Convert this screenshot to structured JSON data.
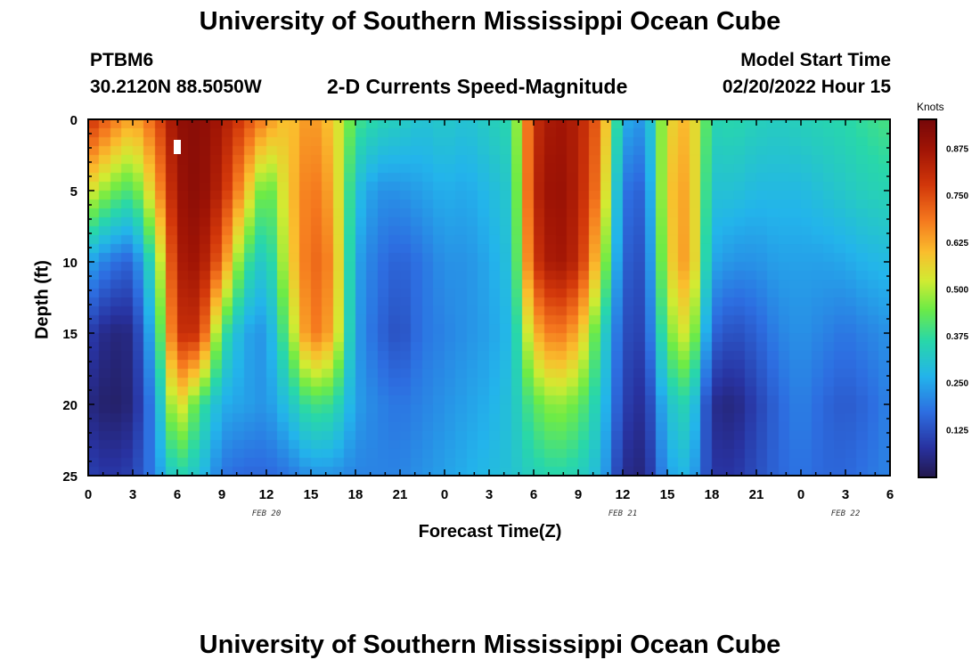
{
  "header": {
    "title_top": "University of Southern Mississippi Ocean Cube",
    "title_bottom": "University of Southern Mississippi Ocean Cube",
    "station_id": "PTBM6",
    "station_coords": "30.2120N  88.5050W",
    "plot_title": "2-D Currents Speed-Magnitude",
    "model_start_label": "Model Start Time",
    "model_start_value": "02/20/2022 Hour 15"
  },
  "chart_data": {
    "type": "heatmap",
    "title": "2-D Currents Speed-Magnitude",
    "xlabel": "Forecast Time(Z)",
    "ylabel": "Depth (ft)",
    "x_range_hours": [
      0,
      54
    ],
    "ylim": [
      0,
      25
    ],
    "x_tick_hours": [
      0,
      3,
      6,
      9,
      12,
      15,
      18,
      21,
      24,
      27,
      30,
      33,
      36,
      39,
      42,
      45,
      48,
      51,
      54
    ],
    "x_tick_labels": [
      "0",
      "3",
      "6",
      "9",
      "12",
      "15",
      "18",
      "21",
      "0",
      "3",
      "6",
      "9",
      "12",
      "15",
      "18",
      "21",
      "0",
      "3",
      "6"
    ],
    "y_ticks": [
      0,
      5,
      10,
      15,
      20,
      25
    ],
    "y_tick_labels": [
      "0",
      "5",
      "10",
      "15",
      "20",
      "25"
    ],
    "date_labels": [
      {
        "text": "FEB 20",
        "hour": 12
      },
      {
        "text": "FEB 21",
        "hour": 36
      },
      {
        "text": "FEB 22",
        "hour": 51
      }
    ],
    "colorbar": {
      "title": "Knots",
      "min": 0.0,
      "max": 0.95,
      "ticks": [
        0.125,
        0.25,
        0.375,
        0.5,
        0.625,
        0.75,
        0.875
      ],
      "tick_labels": [
        "0.125",
        "0.250",
        "0.375",
        "0.500",
        "0.625",
        "0.750",
        "0.875"
      ]
    },
    "time_hours": [
      0,
      1.5,
      3,
      4.5,
      6,
      7.5,
      9,
      10.5,
      12,
      13.5,
      15,
      16.5,
      18,
      19.5,
      21,
      22.5,
      24,
      25.5,
      27,
      28.5,
      30,
      31.5,
      33,
      34.5,
      36,
      37.5,
      39,
      40.5,
      42,
      43.5,
      45,
      46.5,
      48,
      49.5,
      51,
      52.5,
      54
    ],
    "depths_ft": [
      0,
      5,
      10,
      15,
      20,
      25
    ],
    "speed_knots": [
      [
        0.8,
        0.7,
        0.62,
        0.72,
        0.9,
        0.92,
        0.86,
        0.76,
        0.66,
        0.58,
        0.66,
        0.58,
        0.4,
        0.35,
        0.33,
        0.3,
        0.32,
        0.3,
        0.33,
        0.36,
        0.8,
        0.88,
        0.84,
        0.7,
        0.26,
        0.22,
        0.55,
        0.62,
        0.35,
        0.36,
        0.34,
        0.33,
        0.34,
        0.35,
        0.36,
        0.38,
        0.4
      ],
      [
        0.55,
        0.45,
        0.4,
        0.6,
        0.88,
        0.92,
        0.82,
        0.62,
        0.4,
        0.58,
        0.7,
        0.62,
        0.3,
        0.22,
        0.22,
        0.24,
        0.26,
        0.25,
        0.28,
        0.32,
        0.82,
        0.9,
        0.84,
        0.66,
        0.18,
        0.15,
        0.58,
        0.64,
        0.3,
        0.3,
        0.28,
        0.28,
        0.28,
        0.3,
        0.32,
        0.34,
        0.35
      ],
      [
        0.25,
        0.18,
        0.15,
        0.4,
        0.85,
        0.88,
        0.7,
        0.4,
        0.3,
        0.55,
        0.72,
        0.66,
        0.25,
        0.18,
        0.15,
        0.18,
        0.22,
        0.22,
        0.25,
        0.3,
        0.78,
        0.88,
        0.82,
        0.55,
        0.15,
        0.12,
        0.55,
        0.66,
        0.25,
        0.22,
        0.22,
        0.24,
        0.24,
        0.24,
        0.25,
        0.27,
        0.28
      ],
      [
        0.1,
        0.04,
        0.05,
        0.3,
        0.8,
        0.8,
        0.4,
        0.25,
        0.22,
        0.45,
        0.7,
        0.62,
        0.24,
        0.16,
        0.12,
        0.18,
        0.2,
        0.22,
        0.24,
        0.28,
        0.6,
        0.7,
        0.62,
        0.38,
        0.12,
        0.1,
        0.45,
        0.55,
        0.16,
        0.12,
        0.15,
        0.2,
        0.22,
        0.2,
        0.18,
        0.2,
        0.22
      ],
      [
        0.05,
        0.02,
        0.04,
        0.22,
        0.58,
        0.4,
        0.26,
        0.24,
        0.22,
        0.3,
        0.4,
        0.38,
        0.24,
        0.2,
        0.18,
        0.2,
        0.22,
        0.24,
        0.26,
        0.3,
        0.42,
        0.48,
        0.44,
        0.32,
        0.1,
        0.06,
        0.3,
        0.36,
        0.06,
        0.04,
        0.1,
        0.16,
        0.2,
        0.16,
        0.14,
        0.16,
        0.2
      ],
      [
        0.1,
        0.08,
        0.1,
        0.2,
        0.36,
        0.3,
        0.18,
        0.16,
        0.16,
        0.18,
        0.22,
        0.22,
        0.2,
        0.2,
        0.2,
        0.22,
        0.24,
        0.26,
        0.28,
        0.3,
        0.34,
        0.36,
        0.34,
        0.28,
        0.06,
        0.04,
        0.24,
        0.28,
        0.08,
        0.08,
        0.12,
        0.16,
        0.18,
        0.16,
        0.16,
        0.18,
        0.2
      ]
    ],
    "marker": {
      "label": "current-time-marker",
      "hour": 6,
      "depth_ft": 2
    }
  },
  "colors": {
    "frame": "#000000",
    "marker": "#ffffff"
  }
}
